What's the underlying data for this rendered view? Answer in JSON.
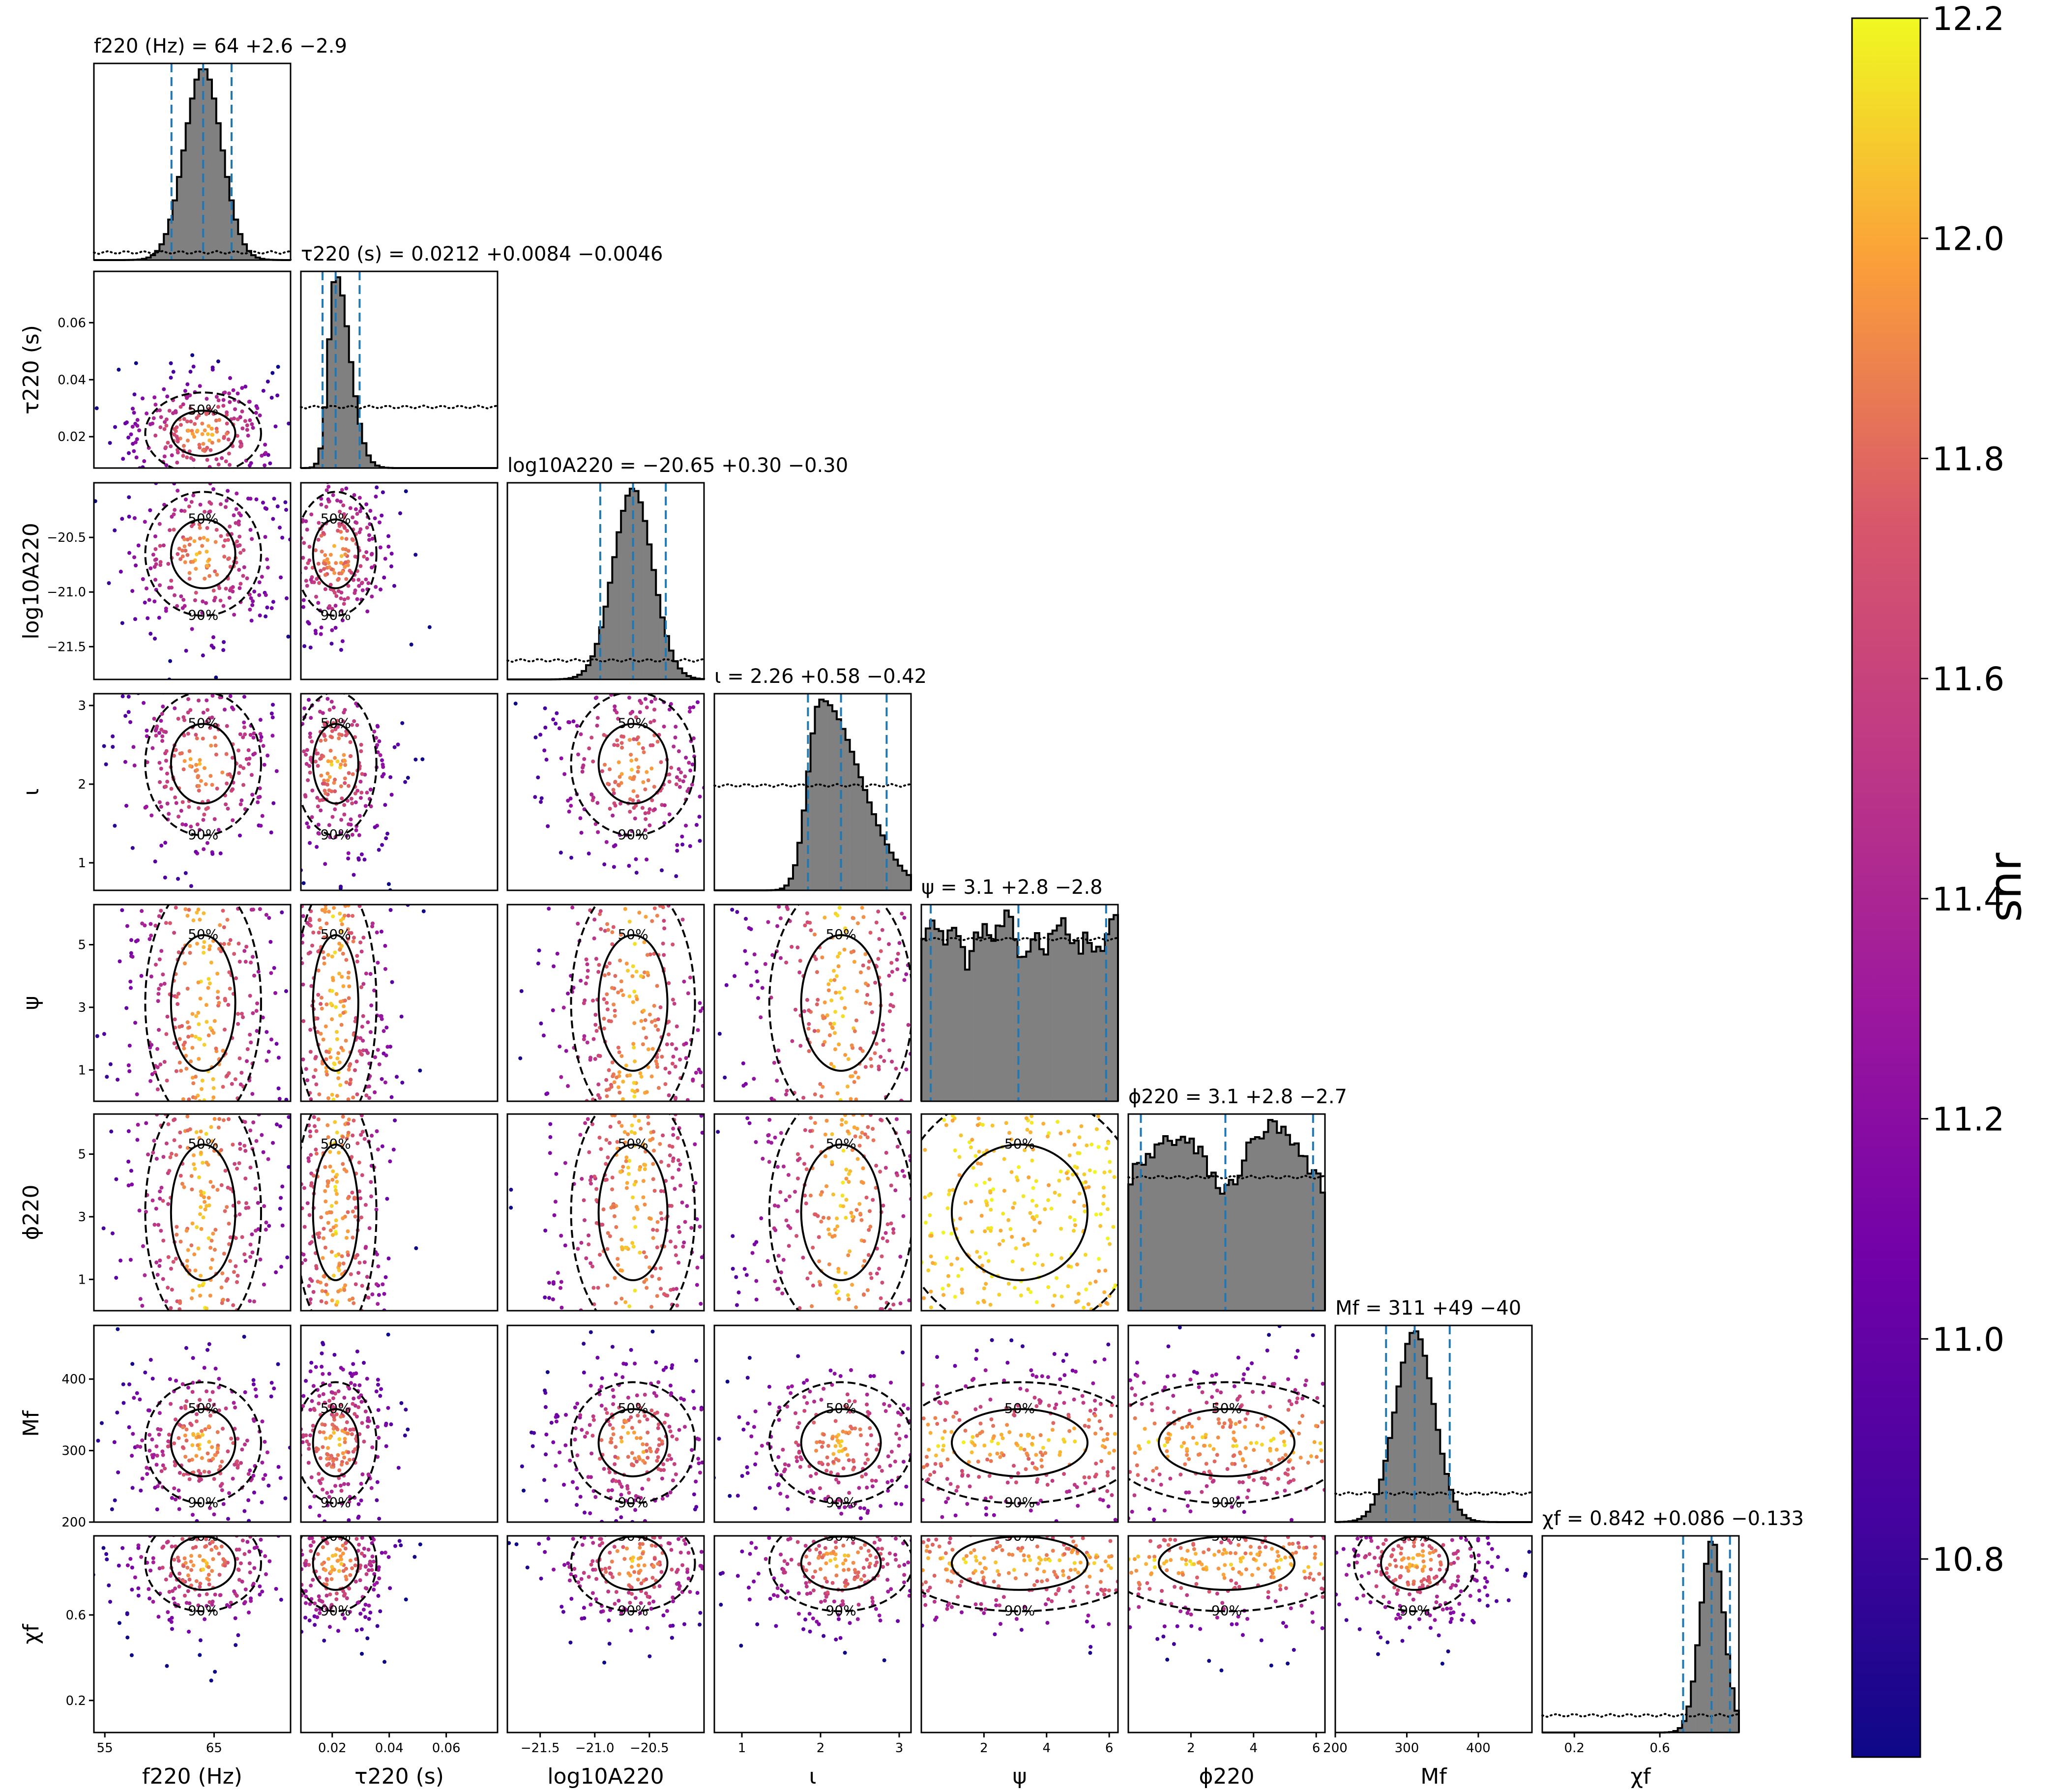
{
  "chart_data": {
    "type": "corner",
    "colorbar": {
      "label": "snr",
      "range": [
        10.62,
        12.2
      ],
      "ticks": [
        "10.8",
        "11.0",
        "11.2",
        "11.4",
        "11.6",
        "11.8",
        "12.0",
        "12.2"
      ],
      "tick_values": [
        10.8,
        11.0,
        11.2,
        11.4,
        11.6,
        11.8,
        12.0,
        12.2
      ],
      "colormap": "plasma"
    },
    "histogram_color": "#808080",
    "quantile_line_color": "#1f77b4",
    "parameters": [
      {
        "key": "f220",
        "axis_label": "f220 (Hz)",
        "range": [
          54,
          72
        ],
        "x_ticks": [
          "55",
          "65"
        ],
        "x_tick_values": [
          55,
          65
        ],
        "y_ticks": [],
        "y_tick_values": [],
        "median": 64,
        "err_plus": 2.6,
        "err_minus": 2.9,
        "title": "f220 (Hz) = 64 +2.6 −2.9",
        "dist": {
          "type": "normal",
          "mu": 64,
          "sigma": 1.7
        },
        "prior_level": 0.04
      },
      {
        "key": "tau220",
        "axis_label": "τ220 (s)",
        "range": [
          0.009,
          0.078
        ],
        "x_ticks": [
          "0.02",
          "0.04",
          "0.06"
        ],
        "x_tick_values": [
          0.02,
          0.04,
          0.06
        ],
        "y_ticks": [
          "0.02",
          "0.04",
          "0.06"
        ],
        "y_tick_values": [
          0.02,
          0.04,
          0.06
        ],
        "median": 0.0212,
        "err_plus": 0.0084,
        "err_minus": 0.0046,
        "title": "τ220 (s) = 0.0212 +0.0084 −0.0046",
        "dist": {
          "type": "lognormal",
          "mu": 0.0212,
          "sigma": 0.0045
        },
        "prior_level": 0.32
      },
      {
        "key": "logA220",
        "axis_label": "log10A220",
        "range": [
          -21.8,
          -20.0
        ],
        "x_ticks": [
          "−21.5",
          "−21.0",
          "−20.5"
        ],
        "x_tick_values": [
          -21.5,
          -21.0,
          -20.5
        ],
        "y_ticks": [
          "−20.5",
          "−21.0",
          "−21.5"
        ],
        "y_tick_values": [
          -20.5,
          -21.0,
          -21.5
        ],
        "median": -20.65,
        "err_plus": 0.3,
        "err_minus": 0.3,
        "title": "log10A220 = −20.65 +0.30 −0.30",
        "dist": {
          "type": "normal",
          "mu": -20.65,
          "sigma": 0.18
        },
        "prior_level": 0.1
      },
      {
        "key": "iota",
        "axis_label": "ι",
        "range": [
          0.65,
          3.15
        ],
        "x_ticks": [
          "1",
          "2",
          "3"
        ],
        "x_tick_values": [
          1,
          2,
          3
        ],
        "y_ticks": [
          "1",
          "2",
          "3"
        ],
        "y_tick_values": [
          1,
          2,
          3
        ],
        "median": 2.26,
        "err_plus": 0.58,
        "err_minus": 0.42,
        "title": "ι = 2.26 +0.58 −0.42",
        "dist": {
          "type": "skew",
          "mu": 2.0,
          "sl": 0.16,
          "sr": 0.5
        },
        "prior_level": 0.55
      },
      {
        "key": "psi",
        "axis_label": "ψ",
        "range": [
          0,
          6.28
        ],
        "x_ticks": [
          "2",
          "4",
          "6"
        ],
        "x_tick_values": [
          2,
          4,
          6
        ],
        "y_ticks": [
          "1",
          "3",
          "5"
        ],
        "y_tick_values": [
          1,
          3,
          5
        ],
        "median": 3.1,
        "err_plus": 2.8,
        "err_minus": 2.8,
        "title": "ψ = 3.1 +2.8 −2.8",
        "dist": {
          "type": "flat"
        },
        "prior_level": 0.85
      },
      {
        "key": "phi220",
        "axis_label": "ϕ220",
        "range": [
          0,
          6.28
        ],
        "x_ticks": [
          "2",
          "4",
          "6"
        ],
        "x_tick_values": [
          2,
          4,
          6
        ],
        "y_ticks": [
          "1",
          "3",
          "5"
        ],
        "y_tick_values": [
          1,
          3,
          5
        ],
        "median": 3.1,
        "err_plus": 2.8,
        "err_minus": 2.7,
        "title": "ϕ220 = 3.1 +2.8 −2.7",
        "dist": {
          "type": "bimodal"
        },
        "prior_level": 0.7
      },
      {
        "key": "Mf",
        "axis_label": "Mf",
        "range": [
          200,
          475
        ],
        "x_ticks": [
          "200",
          "300",
          "400"
        ],
        "x_tick_values": [
          200,
          300,
          400
        ],
        "y_ticks": [
          "200",
          "300",
          "400"
        ],
        "y_tick_values": [
          200,
          300,
          400
        ],
        "median": 311,
        "err_plus": 49,
        "err_minus": 40,
        "title": "Mf = 311 +49 −40",
        "dist": {
          "type": "normal",
          "mu": 311,
          "sigma": 27
        },
        "prior_level": 0.15
      },
      {
        "key": "chif",
        "axis_label": "χf",
        "range": [
          0.05,
          0.97
        ],
        "x_ticks": [
          "0.2",
          "0.6"
        ],
        "x_tick_values": [
          0.2,
          0.6
        ],
        "y_ticks": [
          "0.2",
          "0.6"
        ],
        "y_tick_values": [
          0.2,
          0.6
        ],
        "median": 0.842,
        "err_plus": 0.086,
        "err_minus": 0.133,
        "title": "χf = 0.842 +0.086 −0.133",
        "dist": {
          "type": "normal",
          "mu": 0.845,
          "sigma": 0.055
        },
        "prior_level": 0.09
      }
    ],
    "contour_levels": [
      "50%",
      "90%"
    ]
  }
}
